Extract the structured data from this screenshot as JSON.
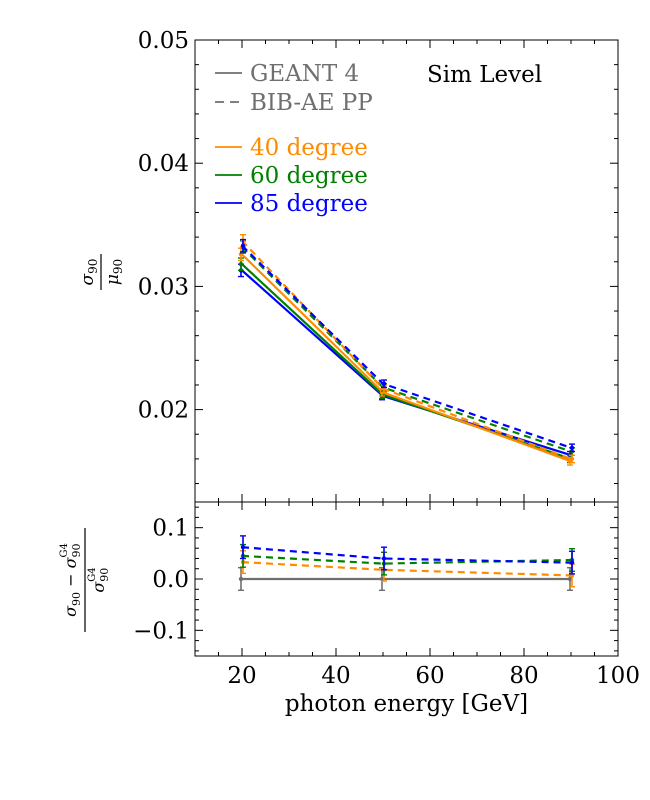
{
  "chart_data": [
    {
      "type": "line",
      "panel": "main",
      "ylabel": "σ90 / μ90",
      "xlim": [
        10,
        100
      ],
      "ylim": [
        0.0125,
        0.05
      ],
      "yticks": [
        0.02,
        0.03,
        0.04,
        0.05
      ],
      "ytick_labels": [
        "0.02",
        "0.03",
        "0.04",
        "0.05"
      ],
      "annotation": "Sim Level",
      "legend_styles": [
        {
          "label": "GEANT 4",
          "dash": "solid",
          "color": "#6f6f6f"
        },
        {
          "label": "BIB-AE PP",
          "dash": "dashed",
          "color": "#6f6f6f"
        }
      ],
      "legend_angles": [
        {
          "label": "40 degree",
          "color": "#ff8c00"
        },
        {
          "label": "60 degree",
          "color": "#008000"
        },
        {
          "label": "85 degree",
          "color": "#0000ff"
        }
      ],
      "legend_position": "top-left",
      "x": [
        20,
        50,
        90
      ],
      "series": [
        {
          "name": "GEANT 4 – 85 degree",
          "color": "#0000ff",
          "dash": "solid",
          "values": [
            0.0313,
            0.0211,
            0.0163
          ],
          "err": [
            0.0005,
            0.0003,
            0.0003
          ]
        },
        {
          "name": "GEANT 4 – 60 degree",
          "color": "#008000",
          "dash": "solid",
          "values": [
            0.0318,
            0.0212,
            0.016
          ],
          "err": [
            0.0005,
            0.0003,
            0.0003
          ]
        },
        {
          "name": "GEANT 4 – 40 degree",
          "color": "#ff8c00",
          "dash": "solid",
          "values": [
            0.0326,
            0.0214,
            0.0158
          ],
          "err": [
            0.0005,
            0.0003,
            0.0003
          ]
        },
        {
          "name": "BIB-AE PP – 60 degree",
          "color": "#008000",
          "dash": "dashed",
          "values": [
            0.0332,
            0.0218,
            0.0166
          ],
          "err": [
            0.0005,
            0.0003,
            0.0003
          ]
        },
        {
          "name": "BIB-AE PP – 40 degree",
          "color": "#ff8c00",
          "dash": "dashed",
          "values": [
            0.0337,
            0.0217,
            0.016
          ],
          "err": [
            0.0005,
            0.0003,
            0.0003
          ]
        },
        {
          "name": "BIB-AE PP – 85 degree",
          "color": "#0000ff",
          "dash": "dashed",
          "values": [
            0.0333,
            0.0221,
            0.0169
          ],
          "err": [
            0.0005,
            0.0003,
            0.0003
          ]
        }
      ]
    },
    {
      "type": "line",
      "panel": "ratio",
      "ylabel": "(σ90 − σ90^G4) / σ90^G4",
      "xlabel": "photon energy [GeV]",
      "xlim": [
        10,
        100
      ],
      "ylim": [
        -0.15,
        0.15
      ],
      "xticks": [
        20,
        40,
        60,
        80,
        100
      ],
      "xtick_labels": [
        "20",
        "40",
        "60",
        "80",
        "100"
      ],
      "yticks": [
        -0.1,
        0.0,
        0.1
      ],
      "ytick_labels": [
        "−0.1",
        "0.0",
        "0.1"
      ],
      "x": [
        20,
        50,
        90
      ],
      "series": [
        {
          "name": "GEANT 4",
          "color": "#6f6f6f",
          "dash": "solid",
          "values": [
            0.0,
            0.0,
            0.0
          ],
          "err": [
            0.022,
            0.022,
            0.022
          ]
        },
        {
          "name": "BIB-AE PP – 40 degree",
          "color": "#ff8c00",
          "dash": "dashed",
          "values": [
            0.033,
            0.018,
            0.007
          ],
          "err": [
            0.022,
            0.022,
            0.022
          ]
        },
        {
          "name": "BIB-AE PP – 60 degree",
          "color": "#008000",
          "dash": "dashed",
          "values": [
            0.045,
            0.03,
            0.037
          ],
          "err": [
            0.022,
            0.022,
            0.022
          ]
        },
        {
          "name": "BIB-AE PP – 85 degree",
          "color": "#0000ff",
          "dash": "dashed",
          "values": [
            0.062,
            0.04,
            0.032
          ],
          "err": [
            0.022,
            0.022,
            0.022
          ]
        }
      ]
    }
  ]
}
